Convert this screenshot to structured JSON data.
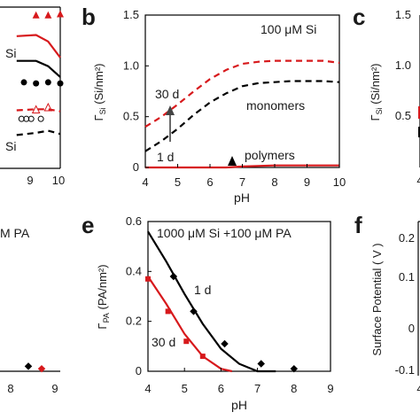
{
  "chart_data": [
    {
      "panel": "a",
      "type": "scatter",
      "title": "",
      "xlabel": "",
      "ylabel": "",
      "xlim": [
        4,
        10
      ],
      "ylim": [
        0,
        1.5
      ],
      "x_ticks": [
        "9",
        "10"
      ],
      "annotations": [
        "Si",
        "Si"
      ],
      "series": [
        {
          "style": "red-triangles",
          "color": "#d7191c",
          "x": [
            9,
            9.5,
            10
          ],
          "y": [
            1.42,
            1.42,
            1.43
          ]
        },
        {
          "style": "red-solid-line",
          "color": "#d7191c",
          "x": [
            8.2,
            9,
            9.5,
            10
          ],
          "y": [
            1.23,
            1.24,
            1.18,
            1.03
          ]
        },
        {
          "style": "black-solid-line",
          "color": "#000000",
          "x": [
            8.2,
            9,
            9.5,
            10
          ],
          "y": [
            1.0,
            1.0,
            0.95,
            0.85
          ]
        },
        {
          "style": "black-dots",
          "color": "#000000",
          "x": [
            8.5,
            9,
            9.5,
            10
          ],
          "y": [
            0.8,
            0.79,
            0.8,
            0.79
          ]
        },
        {
          "style": "red-dashed-line",
          "color": "#d7191c",
          "x": [
            8.2,
            9,
            9.5,
            10
          ],
          "y": [
            0.54,
            0.55,
            0.55,
            0.53
          ]
        },
        {
          "style": "red-open-triangles",
          "color": "#d7191c",
          "x": [
            9,
            9.5
          ],
          "y": [
            0.54,
            0.56
          ]
        },
        {
          "style": "black-dashed-line",
          "color": "#000000",
          "x": [
            8.2,
            9,
            9.5,
            10
          ],
          "y": [
            0.31,
            0.33,
            0.35,
            0.32
          ]
        },
        {
          "style": "black-open-circles",
          "color": "#000000",
          "x": [
            8.4,
            8.6,
            8.8,
            9.2
          ],
          "y": [
            0.46,
            0.46,
            0.46,
            0.46
          ]
        }
      ]
    },
    {
      "panel": "b",
      "type": "line",
      "title": "100 μM Si",
      "xlabel": "pH",
      "ylabel": "Γ_Si (Si/nm²)",
      "xlim": [
        4,
        10
      ],
      "ylim": [
        0,
        1.5
      ],
      "x_ticks": [
        4,
        5,
        6,
        7,
        8,
        9,
        10
      ],
      "y_ticks": [
        "0",
        "0.5",
        "1.0",
        "1.5"
      ],
      "annotations": [
        "30 d",
        "1 d",
        "monomers",
        "polymers"
      ],
      "series": [
        {
          "name": "30 d",
          "color": "#d7191c",
          "dash": true,
          "x": [
            4,
            4.5,
            5,
            5.5,
            6,
            6.5,
            7,
            7.5,
            8,
            8.5,
            9,
            9.5,
            10
          ],
          "y": [
            0.4,
            0.5,
            0.62,
            0.75,
            0.87,
            0.96,
            1.02,
            1.04,
            1.05,
            1.05,
            1.05,
            1.05,
            1.03
          ]
        },
        {
          "name": "monomers",
          "color": "#000000",
          "dash": true,
          "x": [
            4,
            4.5,
            5,
            5.5,
            6,
            6.5,
            7,
            7.5,
            8,
            8.5,
            9,
            9.5,
            10
          ],
          "y": [
            0.16,
            0.26,
            0.38,
            0.52,
            0.64,
            0.73,
            0.8,
            0.83,
            0.84,
            0.85,
            0.85,
            0.85,
            0.84
          ]
        },
        {
          "name": "polymers",
          "color": "#d7191c",
          "dash": false,
          "x": [
            4,
            6.5,
            7,
            8,
            9,
            10
          ],
          "y": [
            0,
            0,
            0.01,
            0.02,
            0.02,
            0.02
          ]
        }
      ]
    },
    {
      "panel": "c",
      "type": "line",
      "title": "",
      "xlabel": "",
      "ylabel": "Γ_Si (Si/nm²)",
      "ylim": [
        0,
        1.5
      ],
      "x_ticks": [
        "4"
      ],
      "y_ticks": [
        "0.5",
        "1.0",
        "1.5"
      ]
    },
    {
      "panel": "d",
      "type": "scatter",
      "title": "M PA",
      "xlabel": "",
      "ylabel": "",
      "xlim": [
        4,
        9
      ],
      "ylim": [
        0,
        0.6
      ],
      "x_ticks": [
        "8",
        "9"
      ],
      "series": [
        {
          "color": "#000000",
          "x": [
            8
          ],
          "y": [
            0.02
          ]
        },
        {
          "color": "#d7191c",
          "x": [
            8.5
          ],
          "y": [
            0.01
          ]
        }
      ]
    },
    {
      "panel": "e",
      "type": "scatter",
      "title": "1000 μM Si +100 μM PA",
      "xlabel": "pH",
      "ylabel": "Γ_PA (PA/nm²)",
      "xlim": [
        4,
        9
      ],
      "ylim": [
        0,
        0.6
      ],
      "x_ticks": [
        4,
        5,
        6,
        7,
        8,
        9
      ],
      "y_ticks": [
        "0",
        "0.2",
        "0.4",
        "0.6"
      ],
      "annotations": [
        "1 d",
        "30 d"
      ],
      "series": [
        {
          "name": "1 d",
          "color": "#000000",
          "points": {
            "x": [
              4.7,
              5.25,
              6.1,
              7.1,
              8
            ],
            "y": [
              0.38,
              0.24,
              0.11,
              0.03,
              0.01
            ]
          },
          "fit": {
            "x": [
              4,
              4.5,
              5,
              5.5,
              6,
              6.5,
              7,
              7.5
            ],
            "y": [
              0.56,
              0.44,
              0.31,
              0.19,
              0.09,
              0.03,
              0.0,
              0.0
            ]
          }
        },
        {
          "name": "30 d",
          "color": "#d7191c",
          "points": {
            "x": [
              4,
              4.55,
              5.05,
              5.5
            ],
            "y": [
              0.37,
              0.24,
              0.12,
              0.06
            ]
          },
          "fit": {
            "x": [
              4,
              4.5,
              5,
              5.5,
              6,
              6.3
            ],
            "y": [
              0.38,
              0.27,
              0.15,
              0.06,
              0.01,
              0.0
            ]
          }
        }
      ]
    },
    {
      "panel": "f",
      "type": "line",
      "title": "",
      "xlabel": "",
      "ylabel": "Surface Potential ( V )",
      "ylim": [
        -0.1,
        0.2
      ],
      "y_ticks": [
        "0.2",
        "0.1",
        "0",
        "-0.1"
      ],
      "x_ticks": [
        "4"
      ]
    }
  ],
  "panel_labels": {
    "b": "b",
    "c": "c",
    "e": "e",
    "f": "f"
  },
  "colors": {
    "red": "#d7191c",
    "black": "#000000"
  }
}
